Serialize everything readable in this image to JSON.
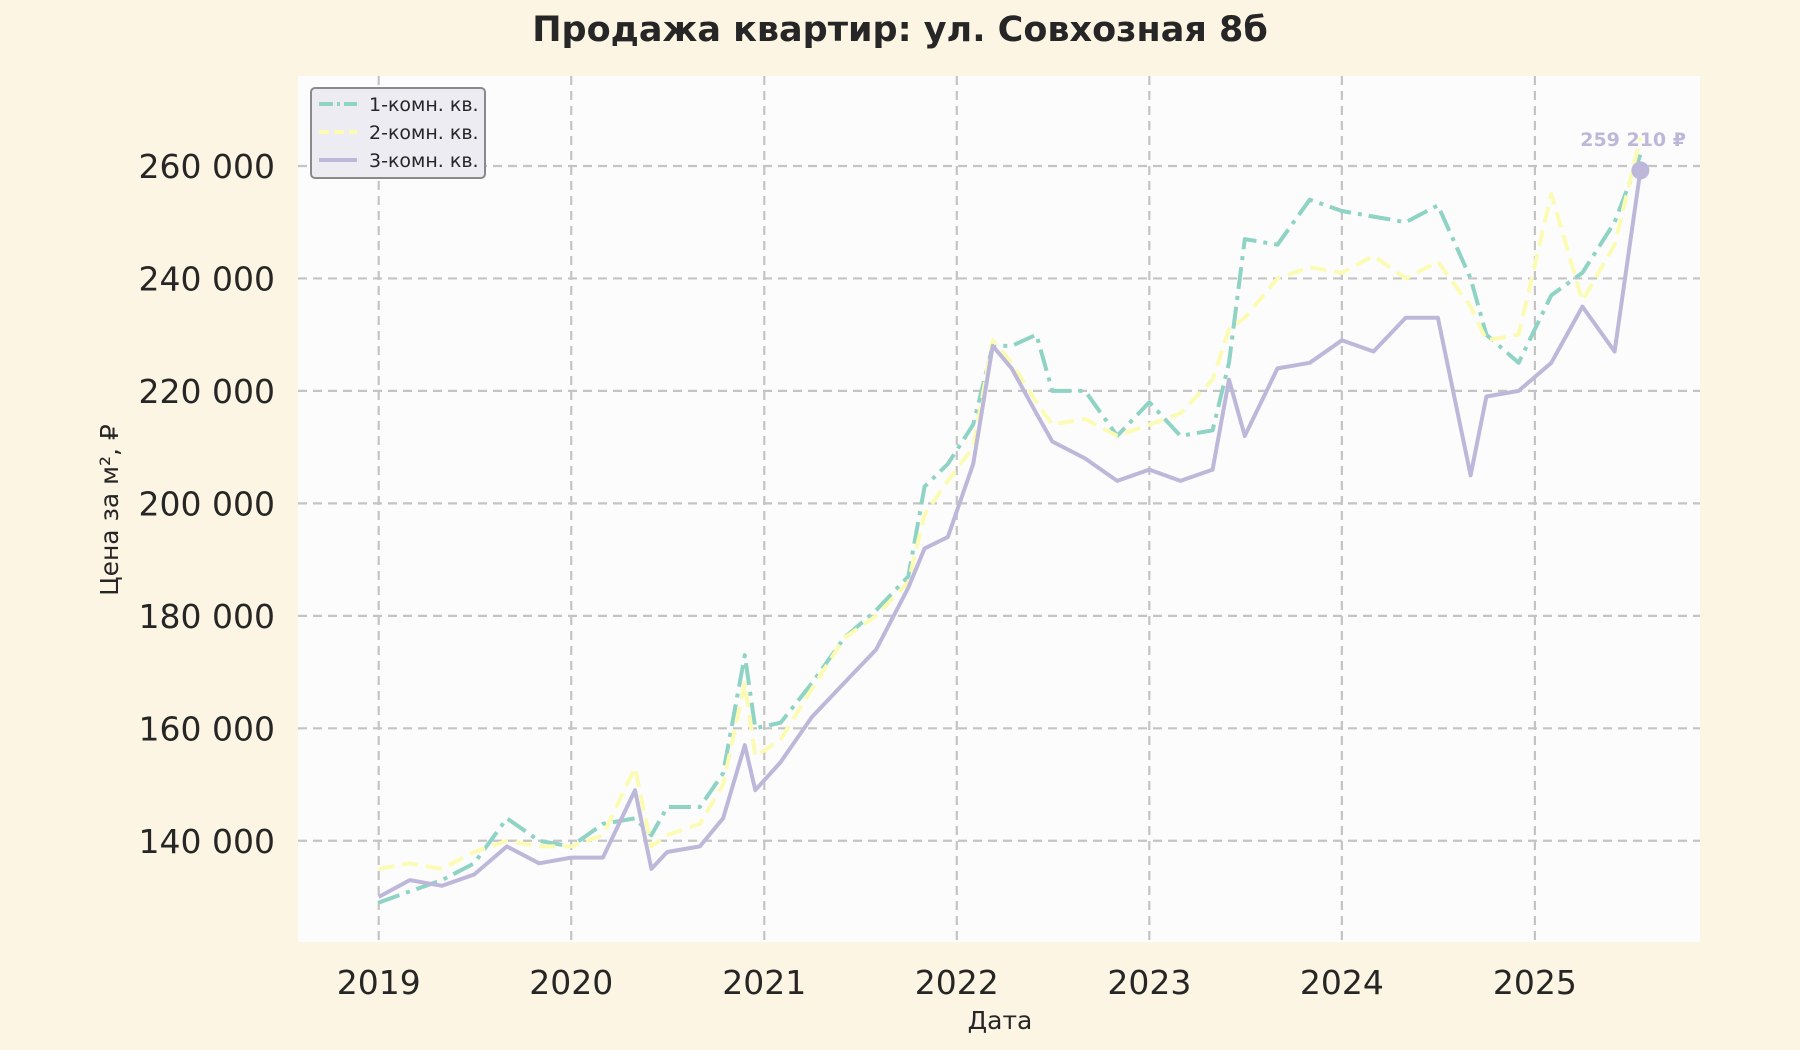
{
  "colors": {
    "background": "#fcf5e3",
    "plot_background": "#fcfcfd",
    "series": [
      "#8fd3c5",
      "#fbfbb4",
      "#bdb8d9"
    ]
  },
  "chart_data": {
    "type": "line",
    "title": "Продажа квартир: ул. Совхозная 8б",
    "xlabel": "Дата",
    "ylabel": "Цена за м², ₽",
    "x_ticks": [
      "2019",
      "2020",
      "2021",
      "2022",
      "2023",
      "2024",
      "2025"
    ],
    "y_ticks": [
      "140 000",
      "160 000",
      "180 000",
      "200 000",
      "220 000",
      "240 000",
      "260 000"
    ],
    "y_tick_values": [
      140000,
      160000,
      180000,
      200000,
      220000,
      240000,
      260000
    ],
    "xlim": [
      "2018-08-01",
      "2025-11-10"
    ],
    "ylim": [
      122000,
      276000
    ],
    "grid": true,
    "legend_position": "top-left",
    "end_label": "259 210 ₽",
    "end_point": {
      "x": "2025-07-20",
      "y": 259210
    },
    "series": [
      {
        "name": "1-комн. кв.",
        "style": "dash-dot",
        "points": [
          [
            "2019-01-01",
            129000
          ],
          [
            "2019-03-01",
            131000
          ],
          [
            "2019-05-01",
            133000
          ],
          [
            "2019-07-01",
            136000
          ],
          [
            "2019-09-01",
            144000
          ],
          [
            "2019-11-01",
            140000
          ],
          [
            "2020-01-01",
            139000
          ],
          [
            "2020-03-01",
            143000
          ],
          [
            "2020-05-01",
            144000
          ],
          [
            "2020-06-01",
            141000
          ],
          [
            "2020-07-01",
            146000
          ],
          [
            "2020-09-01",
            146000
          ],
          [
            "2020-10-15",
            152000
          ],
          [
            "2020-11-25",
            173000
          ],
          [
            "2020-12-15",
            160000
          ],
          [
            "2021-02-01",
            161000
          ],
          [
            "2021-04-01",
            168000
          ],
          [
            "2021-06-01",
            176000
          ],
          [
            "2021-08-01",
            181000
          ],
          [
            "2021-10-01",
            187000
          ],
          [
            "2021-11-01",
            203000
          ],
          [
            "2021-12-15",
            207000
          ],
          [
            "2022-02-01",
            214000
          ],
          [
            "2022-03-10",
            228000
          ],
          [
            "2022-04-15",
            228000
          ],
          [
            "2022-06-01",
            230000
          ],
          [
            "2022-07-01",
            220000
          ],
          [
            "2022-09-01",
            220000
          ],
          [
            "2022-11-01",
            212000
          ],
          [
            "2023-01-01",
            218000
          ],
          [
            "2023-03-01",
            212000
          ],
          [
            "2023-05-01",
            213000
          ],
          [
            "2023-06-01",
            225000
          ],
          [
            "2023-07-01",
            247000
          ],
          [
            "2023-09-01",
            246000
          ],
          [
            "2023-11-01",
            254000
          ],
          [
            "2024-01-01",
            252000
          ],
          [
            "2024-03-01",
            251000
          ],
          [
            "2024-05-01",
            250000
          ],
          [
            "2024-07-01",
            253000
          ],
          [
            "2024-09-01",
            240000
          ],
          [
            "2024-10-01",
            230000
          ],
          [
            "2024-12-01",
            225000
          ],
          [
            "2025-02-01",
            237000
          ],
          [
            "2025-04-01",
            241000
          ],
          [
            "2025-06-01",
            250000
          ],
          [
            "2025-07-20",
            262000
          ]
        ]
      },
      {
        "name": "2-комн. кв.",
        "style": "dashed",
        "points": [
          [
            "2019-01-01",
            135000
          ],
          [
            "2019-03-01",
            136000
          ],
          [
            "2019-05-01",
            135000
          ],
          [
            "2019-07-01",
            138000
          ],
          [
            "2019-09-01",
            140000
          ],
          [
            "2019-11-01",
            139000
          ],
          [
            "2020-01-01",
            139000
          ],
          [
            "2020-03-01",
            141000
          ],
          [
            "2020-05-01",
            153000
          ],
          [
            "2020-06-01",
            139000
          ],
          [
            "2020-07-01",
            141000
          ],
          [
            "2020-09-01",
            143000
          ],
          [
            "2020-10-15",
            150000
          ],
          [
            "2020-11-25",
            168000
          ],
          [
            "2020-12-15",
            155000
          ],
          [
            "2021-02-01",
            158000
          ],
          [
            "2021-04-01",
            167000
          ],
          [
            "2021-06-01",
            176000
          ],
          [
            "2021-08-01",
            180000
          ],
          [
            "2021-10-01",
            186000
          ],
          [
            "2021-11-01",
            198000
          ],
          [
            "2021-12-15",
            204000
          ],
          [
            "2022-02-01",
            210000
          ],
          [
            "2022-03-10",
            229000
          ],
          [
            "2022-04-15",
            225000
          ],
          [
            "2022-06-01",
            218000
          ],
          [
            "2022-07-01",
            214000
          ],
          [
            "2022-09-01",
            215000
          ],
          [
            "2022-11-01",
            212000
          ],
          [
            "2023-01-01",
            214000
          ],
          [
            "2023-03-01",
            216000
          ],
          [
            "2023-05-01",
            222000
          ],
          [
            "2023-06-01",
            231000
          ],
          [
            "2023-07-01",
            233000
          ],
          [
            "2023-09-01",
            240000
          ],
          [
            "2023-11-01",
            242000
          ],
          [
            "2024-01-01",
            241000
          ],
          [
            "2024-03-01",
            244000
          ],
          [
            "2024-05-01",
            240000
          ],
          [
            "2024-07-01",
            243000
          ],
          [
            "2024-09-01",
            235000
          ],
          [
            "2024-10-01",
            229000
          ],
          [
            "2024-12-01",
            230000
          ],
          [
            "2025-02-01",
            255000
          ],
          [
            "2025-04-01",
            236000
          ],
          [
            "2025-06-01",
            246000
          ],
          [
            "2025-07-20",
            265000
          ]
        ]
      },
      {
        "name": "3-комн. кв.",
        "style": "solid",
        "points": [
          [
            "2019-01-01",
            130000
          ],
          [
            "2019-03-01",
            133000
          ],
          [
            "2019-05-01",
            132000
          ],
          [
            "2019-07-01",
            134000
          ],
          [
            "2019-09-01",
            139000
          ],
          [
            "2019-11-01",
            136000
          ],
          [
            "2020-01-01",
            137000
          ],
          [
            "2020-03-01",
            137000
          ],
          [
            "2020-05-01",
            149000
          ],
          [
            "2020-06-01",
            135000
          ],
          [
            "2020-07-01",
            138000
          ],
          [
            "2020-09-01",
            139000
          ],
          [
            "2020-10-15",
            144000
          ],
          [
            "2020-11-25",
            157000
          ],
          [
            "2020-12-15",
            149000
          ],
          [
            "2021-02-01",
            154000
          ],
          [
            "2021-04-01",
            162000
          ],
          [
            "2021-06-01",
            168000
          ],
          [
            "2021-08-01",
            174000
          ],
          [
            "2021-10-01",
            185000
          ],
          [
            "2021-11-01",
            192000
          ],
          [
            "2021-12-15",
            194000
          ],
          [
            "2022-02-01",
            207000
          ],
          [
            "2022-03-10",
            228000
          ],
          [
            "2022-04-15",
            224000
          ],
          [
            "2022-06-01",
            216000
          ],
          [
            "2022-07-01",
            211000
          ],
          [
            "2022-09-01",
            208000
          ],
          [
            "2022-11-01",
            204000
          ],
          [
            "2023-01-01",
            206000
          ],
          [
            "2023-03-01",
            204000
          ],
          [
            "2023-05-01",
            206000
          ],
          [
            "2023-06-01",
            222000
          ],
          [
            "2023-07-01",
            212000
          ],
          [
            "2023-09-01",
            224000
          ],
          [
            "2023-11-01",
            225000
          ],
          [
            "2024-01-01",
            229000
          ],
          [
            "2024-03-01",
            227000
          ],
          [
            "2024-05-01",
            233000
          ],
          [
            "2024-07-01",
            233000
          ],
          [
            "2024-09-01",
            205000
          ],
          [
            "2024-10-01",
            219000
          ],
          [
            "2024-12-01",
            220000
          ],
          [
            "2025-02-01",
            225000
          ],
          [
            "2025-04-01",
            235000
          ],
          [
            "2025-06-01",
            227000
          ],
          [
            "2025-07-20",
            259210
          ]
        ]
      }
    ]
  }
}
